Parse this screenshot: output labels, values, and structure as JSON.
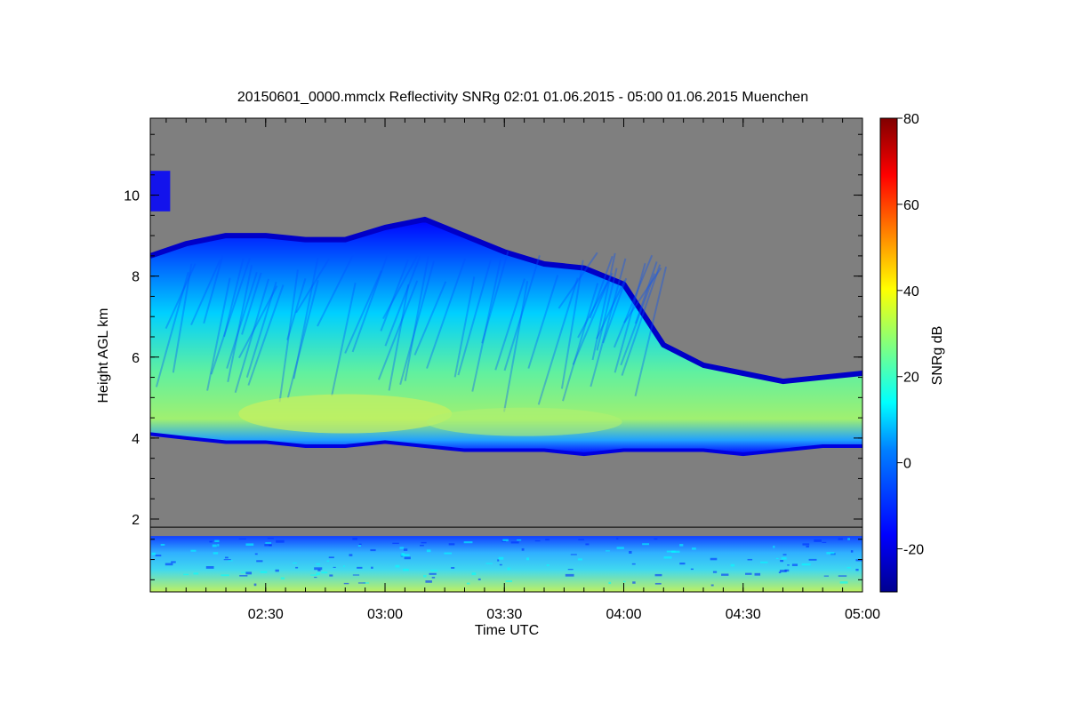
{
  "chart_data": {
    "type": "heatmap",
    "title": "20150601_0000.mmclx Reflectivity SNRg   02:01 01.06.2015 - 05:00 01.06.2015 Muenchen",
    "xlabel": "Time UTC",
    "ylabel": "Height AGL km",
    "colorbar_label": "SNRg dB",
    "x_range": [
      "02:01",
      "05:00"
    ],
    "ylim": [
      0.2,
      11.9
    ],
    "color_range": [
      -30,
      80
    ],
    "x_ticks": [
      "02:30",
      "03:00",
      "03:30",
      "04:00",
      "04:30",
      "05:00"
    ],
    "y_ticks": [
      "2",
      "4",
      "6",
      "8",
      "10"
    ],
    "colorbar_ticks": [
      "-20",
      "0",
      "20",
      "40",
      "60",
      "80"
    ],
    "background_color": "#7f7f7f",
    "colormap": [
      "#00008f",
      "#0000ff",
      "#0080ff",
      "#00ffff",
      "#80ff80",
      "#ffff00",
      "#ff8000",
      "#ff0000",
      "#800000"
    ],
    "features": {
      "cloud_layer": {
        "x": [
          "02:01",
          "02:10",
          "02:20",
          "02:30",
          "02:40",
          "02:50",
          "03:00",
          "03:10",
          "03:20",
          "03:30",
          "03:40",
          "03:50",
          "04:00",
          "04:10",
          "04:20",
          "04:30",
          "04:40",
          "04:50",
          "05:00"
        ],
        "top_km": [
          8.5,
          8.8,
          9.0,
          9.0,
          8.9,
          8.9,
          9.2,
          9.4,
          9.0,
          8.6,
          8.3,
          8.2,
          7.8,
          6.3,
          5.8,
          5.6,
          5.4,
          5.5,
          5.6
        ],
        "base_km": [
          4.1,
          4.0,
          3.9,
          3.9,
          3.8,
          3.8,
          3.9,
          3.8,
          3.7,
          3.7,
          3.7,
          3.6,
          3.7,
          3.7,
          3.7,
          3.6,
          3.7,
          3.8,
          3.8
        ],
        "core_snr_db": [
          22,
          27,
          30,
          31,
          33,
          30,
          26,
          22,
          22,
          24,
          25,
          22,
          20,
          20,
          20,
          20,
          20,
          20,
          22
        ]
      },
      "upper_patch": {
        "x": [
          "02:01",
          "02:06"
        ],
        "top_km": 10.6,
        "base_km": 9.6
      },
      "boundary_layer_top_km": 1.8,
      "boundary_layer_snr_db": [
        0,
        10,
        20
      ]
    }
  }
}
